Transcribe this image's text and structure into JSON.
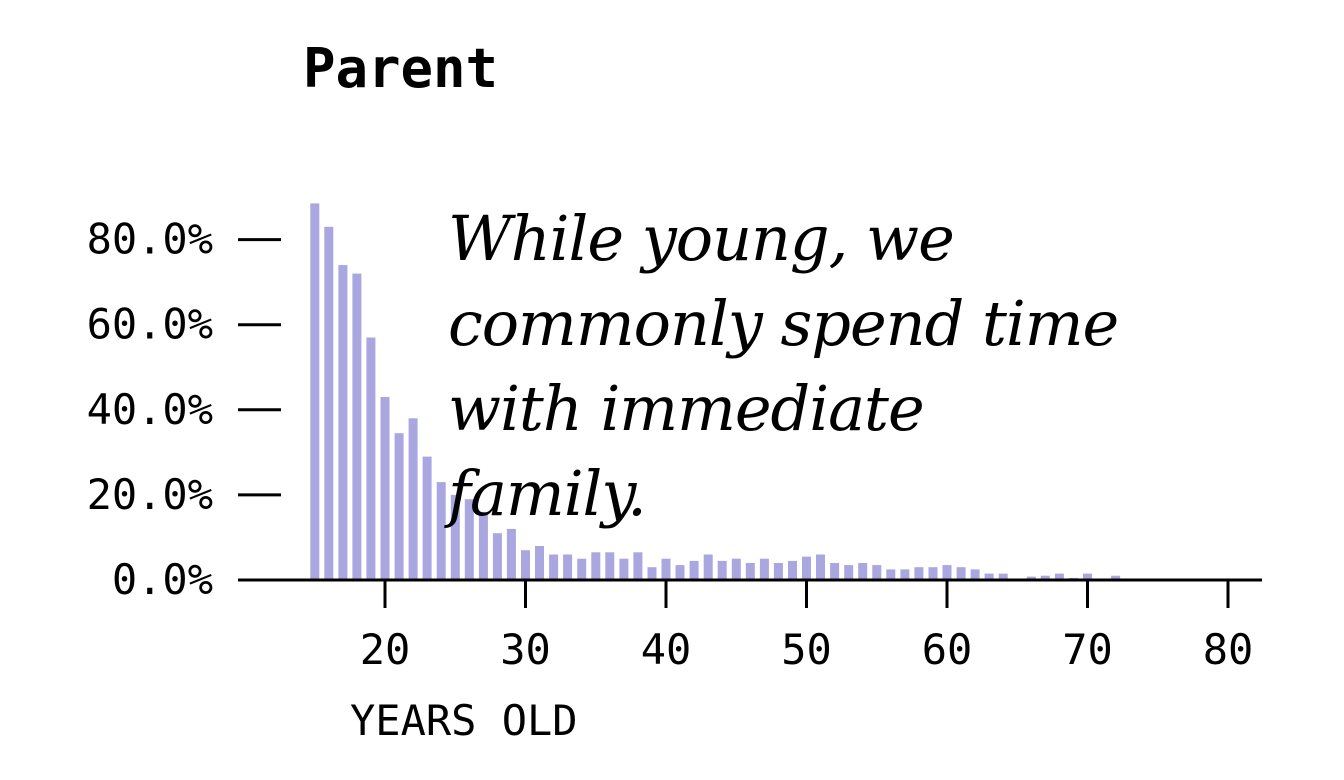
{
  "colors": {
    "bar": "#aaa6e0",
    "axis": "#000000",
    "text": "#000000"
  },
  "chart_data": {
    "type": "bar",
    "title": "Parent",
    "xlabel": "YEARS OLD",
    "ylabel": "",
    "x_ticks": [
      20,
      30,
      40,
      50,
      60,
      70,
      80
    ],
    "y_ticks": [
      "0.0%",
      "20.0%",
      "40.0%",
      "60.0%",
      "80.0%"
    ],
    "y_tick_values": [
      0,
      20,
      40,
      60,
      80
    ],
    "xlim": [
      10,
      82
    ],
    "ylim": [
      0,
      90
    ],
    "grid": false,
    "x": [
      15,
      16,
      17,
      18,
      19,
      20,
      21,
      22,
      23,
      24,
      25,
      26,
      27,
      28,
      29,
      30,
      31,
      32,
      33,
      34,
      35,
      36,
      37,
      38,
      39,
      40,
      41,
      42,
      43,
      44,
      45,
      46,
      47,
      48,
      49,
      50,
      51,
      52,
      53,
      54,
      55,
      56,
      57,
      58,
      59,
      60,
      61,
      62,
      63,
      64,
      65,
      66,
      67,
      68,
      69,
      70,
      71,
      72,
      73,
      74,
      75,
      76,
      77,
      78,
      79,
      80
    ],
    "values": [
      88.5,
      83,
      74,
      72,
      57,
      43,
      34.5,
      38,
      29,
      23,
      20,
      19,
      16,
      11,
      12,
      7,
      8,
      6,
      6,
      5,
      6.5,
      6.5,
      5,
      6.5,
      3,
      5,
      3.5,
      4.5,
      6,
      4.5,
      5,
      4,
      5,
      4,
      4.5,
      5.5,
      6,
      4,
      3.5,
      4,
      3.5,
      2.5,
      2.5,
      3,
      3,
      3.5,
      3,
      2.5,
      1.5,
      1.5,
      0.3,
      0.8,
      1,
      1.5,
      0.5,
      1.5,
      0.3,
      1,
      0.2,
      0.2,
      0.2,
      0.2,
      0.2,
      0.3,
      0.2,
      0.2
    ]
  },
  "annotation": {
    "lines": [
      "While young, we",
      "commonly spend time",
      "with immediate",
      "family."
    ]
  }
}
